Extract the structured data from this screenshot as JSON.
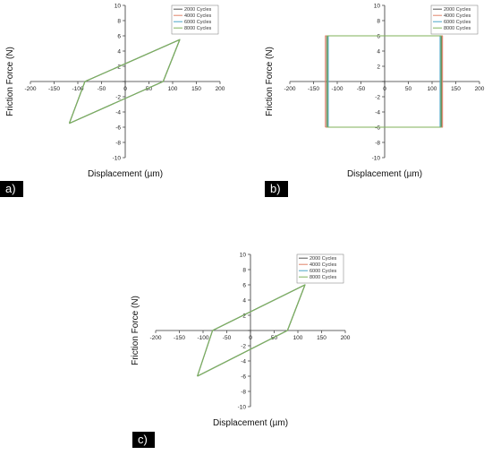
{
  "chart_data": [
    {
      "panel_label": "a)",
      "type": "line",
      "xlabel": "Displacement (µm)",
      "ylabel": "Friction Force (N)",
      "xlim": [
        -200,
        200
      ],
      "ylim": [
        -10,
        10
      ],
      "xticks": [
        -200,
        -150,
        -100,
        -50,
        0,
        50,
        100,
        150,
        200
      ],
      "yticks": [
        -10,
        -8,
        -6,
        -4,
        -2,
        0,
        2,
        4,
        6,
        8,
        10
      ],
      "legend_position": "top-right",
      "series": [
        {
          "name": "2000 Cycles",
          "color": "#555555",
          "x": [
            -118,
            -85,
            115,
            80,
            -118
          ],
          "y": [
            -5.5,
            0,
            5.5,
            0,
            -5.5
          ]
        },
        {
          "name": "4000 Cycles",
          "color": "#e0826a",
          "x": [
            -118,
            -85,
            115,
            80,
            -118
          ],
          "y": [
            -5.5,
            0,
            5.5,
            0,
            -5.5
          ]
        },
        {
          "name": "6000 Cycles",
          "color": "#4aa6c8",
          "x": [
            -118,
            -85,
            115,
            80,
            -118
          ],
          "y": [
            -5.5,
            0,
            5.5,
            0,
            -5.5
          ]
        },
        {
          "name": "8000 Cycles",
          "color": "#7fb25a",
          "x": [
            -118,
            -85,
            115,
            80,
            -118
          ],
          "y": [
            -5.5,
            0,
            5.5,
            0,
            -5.5
          ]
        }
      ]
    },
    {
      "panel_label": "b)",
      "type": "line",
      "xlabel": "Displacement (µm)",
      "ylabel": "Friction Force (N)",
      "xlim": [
        -200,
        200
      ],
      "ylim": [
        -10,
        10
      ],
      "xticks": [
        -200,
        -150,
        -100,
        -50,
        0,
        50,
        100,
        150,
        200
      ],
      "yticks": [
        -10,
        -8,
        -6,
        -4,
        -2,
        0,
        2,
        4,
        6,
        8,
        10
      ],
      "legend_position": "top-right",
      "series": [
        {
          "name": "2000 Cycles",
          "color": "#555555",
          "x": [
            -122,
            -122,
            120,
            120,
            -122
          ],
          "y": [
            -6,
            6,
            6,
            -6,
            -6
          ]
        },
        {
          "name": "4000 Cycles",
          "color": "#e0826a",
          "x": [
            -125,
            -125,
            122,
            122,
            -125
          ],
          "y": [
            -6,
            6,
            6,
            -6,
            -6
          ]
        },
        {
          "name": "6000 Cycles",
          "color": "#4aa6c8",
          "x": [
            -119,
            -119,
            117,
            117,
            -119
          ],
          "y": [
            -6,
            6,
            6,
            -6,
            -6
          ]
        },
        {
          "name": "8000 Cycles",
          "color": "#7fb25a",
          "x": [
            -121,
            -121,
            119,
            119,
            -121
          ],
          "y": [
            -6,
            6,
            6,
            -6,
            -6
          ]
        }
      ]
    },
    {
      "panel_label": "c)",
      "type": "line",
      "xlabel": "Displacement (µm)",
      "ylabel": "Friction Force (N)",
      "xlim": [
        -200,
        200
      ],
      "ylim": [
        -10,
        10
      ],
      "xticks": [
        -200,
        -150,
        -100,
        -50,
        0,
        50,
        100,
        150,
        200
      ],
      "yticks": [
        -10,
        -8,
        -6,
        -4,
        -2,
        0,
        2,
        4,
        6,
        8,
        10
      ],
      "legend_position": "top-right",
      "series": [
        {
          "name": "2000 Cycles",
          "color": "#555555",
          "x": [
            -112,
            -80,
            115,
            78,
            -112
          ],
          "y": [
            -6,
            0,
            6,
            0,
            -6
          ]
        },
        {
          "name": "4000 Cycles",
          "color": "#e0826a",
          "x": [
            -112,
            -80,
            115,
            78,
            -112
          ],
          "y": [
            -6,
            0,
            6,
            0,
            -6
          ]
        },
        {
          "name": "6000 Cycles",
          "color": "#4aa6c8",
          "x": [
            -112,
            -80,
            115,
            78,
            -112
          ],
          "y": [
            -6,
            0,
            6,
            0,
            -6
          ]
        },
        {
          "name": "8000 Cycles",
          "color": "#7fb25a",
          "x": [
            -112,
            -80,
            115,
            78,
            -112
          ],
          "y": [
            -6,
            0,
            6,
            0,
            -6
          ]
        }
      ]
    }
  ]
}
